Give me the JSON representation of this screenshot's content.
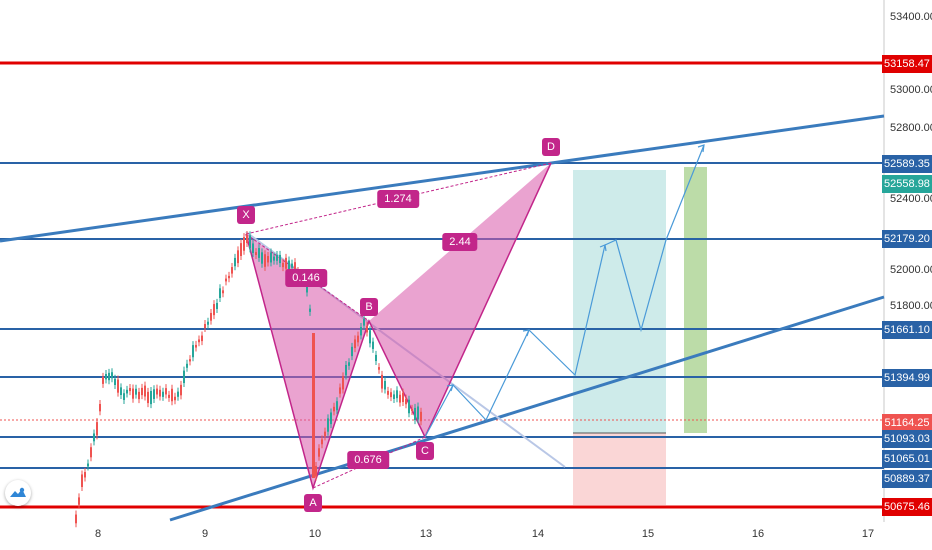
{
  "colors": {
    "candle_up": "#26a69a",
    "candle_down": "#ef5350",
    "horizontal_line": "#2962a6",
    "red_line": "#e00000",
    "trendline": "#3a7bbd",
    "harmonic_fill": "#d957a9",
    "harmonic_line": "#c2268a",
    "projection": "#4a9ad8",
    "target_zone": "#b3e0de",
    "stop_zone": "#f9cccc",
    "green_zone": "#a6d08b",
    "dashed_diagonal": "#b9c7e6",
    "last_price": "#ef5350"
  },
  "price_axis": {
    "plain_ticks": [
      "53400.00",
      "53000.00",
      "52800.00",
      "52400.00",
      "52000.00",
      "51800.00"
    ],
    "tags": [
      {
        "value": "53158.47",
        "color": "#e00000"
      },
      {
        "value": "52589.35",
        "color": "#2962a6"
      },
      {
        "value": "52558.98",
        "color": "#26a69a"
      },
      {
        "value": "52179.20",
        "color": "#2962a6"
      },
      {
        "value": "51661.10",
        "color": "#2962a6"
      },
      {
        "value": "51394.99",
        "color": "#2962a6"
      },
      {
        "value": "51164.25",
        "color": "#ef5350"
      },
      {
        "value": "51093.03",
        "color": "#2962a6"
      },
      {
        "value": "51065.01",
        "color": "#2962a6"
      },
      {
        "value": "50889.37",
        "color": "#2962a6"
      },
      {
        "value": "50675.46",
        "color": "#e00000"
      }
    ]
  },
  "time_axis": {
    "ticks": [
      "8",
      "9",
      "10",
      "13",
      "14",
      "15",
      "16",
      "17"
    ]
  },
  "harmonic_pattern": {
    "points": [
      "X",
      "A",
      "B",
      "C",
      "D"
    ],
    "ratios": [
      "1.274",
      "0.146",
      "2.44",
      "0.676"
    ]
  },
  "logo_icon": "tradingview-cloud-icon"
}
